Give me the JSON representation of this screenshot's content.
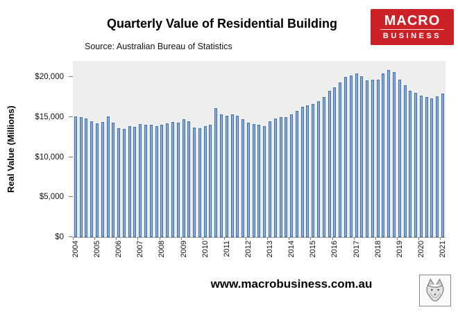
{
  "header": {
    "title": "Quarterly Value of Residential Building",
    "source": "Source: Australian Bureau of Statistics",
    "logo_line1": "MACRO",
    "logo_line2": "BUSINESS",
    "logo_color": "#cc2127"
  },
  "footer": {
    "website": "www.macrobusiness.com.au"
  },
  "chart_data": {
    "type": "bar",
    "title": "Quarterly Value of Residential Building",
    "subtitle": "Source: Australian Bureau of Statistics",
    "ylabel": "Real Value (Millions)",
    "xlabel": "",
    "ylim": [
      0,
      22000
    ],
    "grid": false,
    "plot_bg": "#eeeeee",
    "bar_color": "#8aadd6",
    "bar_border_color": "#3f6fa8",
    "frequency": "quarterly",
    "x_start": "2004-Q1",
    "x_end": "2021-Q1",
    "year_labels": [
      "2004",
      "2005",
      "2006",
      "2007",
      "2008",
      "2009",
      "2010",
      "2011",
      "2012",
      "2013",
      "2014",
      "2015",
      "2016",
      "2017",
      "2018",
      "2019",
      "2020",
      "2021"
    ],
    "yticks": [
      {
        "label": "$0",
        "value": 0
      },
      {
        "label": "$5,000",
        "value": 5000
      },
      {
        "label": "$10,000",
        "value": 10000
      },
      {
        "label": "$15,000",
        "value": 15000
      },
      {
        "label": "$20,000",
        "value": 20000
      }
    ],
    "values": [
      15100,
      15000,
      14800,
      14500,
      14200,
      14400,
      15100,
      14300,
      13600,
      13500,
      13900,
      13800,
      14100,
      14000,
      14000,
      13900,
      14000,
      14200,
      14400,
      14300,
      14700,
      14500,
      13700,
      13600,
      13900,
      14000,
      16100,
      15300,
      15200,
      15300,
      15200,
      14700,
      14300,
      14100,
      14000,
      13900,
      14500,
      14800,
      15000,
      15000,
      15300,
      15800,
      16300,
      16500,
      16600,
      17000,
      17500,
      18300,
      18700,
      19300,
      20000,
      20200,
      20400,
      20100,
      19600,
      19700,
      19700,
      20400,
      20900,
      20600,
      19700,
      19000,
      18300,
      18000,
      17700,
      17500,
      17300,
      17600,
      17900
    ]
  }
}
